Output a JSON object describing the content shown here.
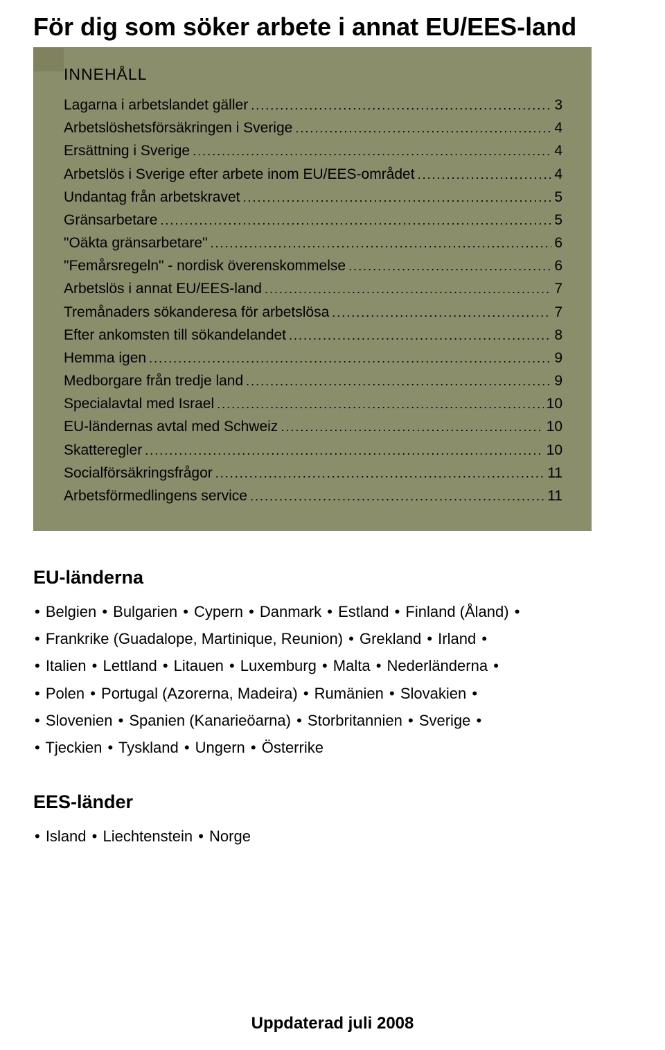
{
  "colors": {
    "toc_background": "#8b8e6b",
    "tab_background": "#80825f",
    "page_background": "#ffffff",
    "text": "#000000"
  },
  "title": "För dig som söker arbete i annat EU/EES-land",
  "toc": {
    "heading": "INNEHÅLL",
    "items": [
      {
        "label": "Lagarna i arbetslandet gäller",
        "page": "3"
      },
      {
        "label": "Arbetslöshetsförsäkringen i Sverige",
        "page": "4"
      },
      {
        "label": "Ersättning i Sverige",
        "page": "4"
      },
      {
        "label": "Arbetslös i Sverige efter arbete inom EU/EES-området",
        "page": "4"
      },
      {
        "label": "Undantag från arbetskravet",
        "page": "5"
      },
      {
        "label": "Gränsarbetare",
        "page": "5"
      },
      {
        "label": "\"Oäkta gränsarbetare\"",
        "page": "6"
      },
      {
        "label": "\"Femårsregeln\" - nordisk överenskommelse",
        "page": "6"
      },
      {
        "label": "Arbetslös i annat EU/EES-land",
        "page": "7"
      },
      {
        "label": "Tremånaders sökanderesa för arbetslösa",
        "page": "7"
      },
      {
        "label": "Efter ankomsten till sökandelandet",
        "page": "8"
      },
      {
        "label": "Hemma igen",
        "page": "9"
      },
      {
        "label": "Medborgare från tredje land",
        "page": "9"
      },
      {
        "label": "Specialavtal med Israel",
        "page": "10"
      },
      {
        "label": "EU-ländernas avtal med Schweiz",
        "page": "10"
      },
      {
        "label": "Skatteregler",
        "page": "10"
      },
      {
        "label": "Socialförsäkringsfrågor",
        "page": "11"
      },
      {
        "label": "Arbetsförmedlingens service",
        "page": "11"
      }
    ]
  },
  "eu_section": {
    "heading": "EU-länderna",
    "separator": "•",
    "countries": [
      "Belgien",
      "Bulgarien",
      "Cypern",
      "Danmark",
      "Estland",
      "Finland (Åland)",
      "Frankrike (Guadalope, Martinique, Reunion)",
      "Grekland",
      "Irland",
      "Italien",
      "Lettland",
      "Litauen",
      "Luxemburg",
      "Malta",
      "Nederländerna",
      "Polen",
      "Portugal (Azorerna, Madeira)",
      "Rumänien",
      "Slovakien",
      "Slovenien",
      "Spanien (Kanarieöarna)",
      "Storbritannien",
      "Sverige",
      "Tjeckien",
      "Tyskland",
      "Ungern",
      "Österrike"
    ],
    "line_breaks_after": [
      5,
      8,
      14,
      18,
      22
    ]
  },
  "ees_section": {
    "heading": "EES-länder",
    "separator": "•",
    "countries": [
      "Island",
      "Liechtenstein",
      "Norge"
    ]
  },
  "footer": "Uppdaterad juli 2008"
}
